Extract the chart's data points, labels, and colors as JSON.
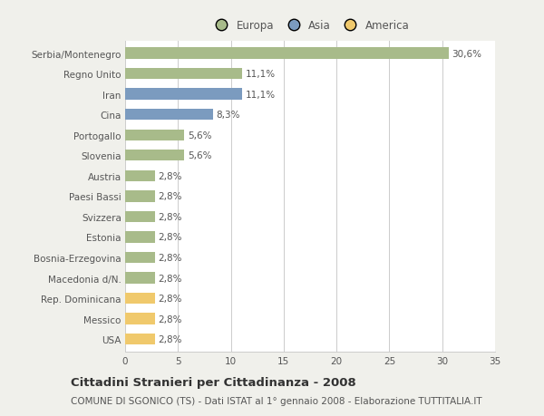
{
  "categories": [
    "Serbia/Montenegro",
    "Regno Unito",
    "Iran",
    "Cina",
    "Portogallo",
    "Slovenia",
    "Austria",
    "Paesi Bassi",
    "Svizzera",
    "Estonia",
    "Bosnia-Erzegovina",
    "Macedonia d/N.",
    "Rep. Dominicana",
    "Messico",
    "USA"
  ],
  "values": [
    30.6,
    11.1,
    11.1,
    8.3,
    5.6,
    5.6,
    2.8,
    2.8,
    2.8,
    2.8,
    2.8,
    2.8,
    2.8,
    2.8,
    2.8
  ],
  "labels": [
    "30,6%",
    "11,1%",
    "11,1%",
    "8,3%",
    "5,6%",
    "5,6%",
    "2,8%",
    "2,8%",
    "2,8%",
    "2,8%",
    "2,8%",
    "2,8%",
    "2,8%",
    "2,8%",
    "2,8%"
  ],
  "colors": [
    "#a8bb8a",
    "#a8bb8a",
    "#7b9bbf",
    "#7b9bbf",
    "#a8bb8a",
    "#a8bb8a",
    "#a8bb8a",
    "#a8bb8a",
    "#a8bb8a",
    "#a8bb8a",
    "#a8bb8a",
    "#a8bb8a",
    "#f0c96c",
    "#f0c96c",
    "#f0c96c"
  ],
  "legend_labels": [
    "Europa",
    "Asia",
    "America"
  ],
  "legend_colors": [
    "#a8bb8a",
    "#7b9bbf",
    "#f0c96c"
  ],
  "xlim": [
    0,
    35
  ],
  "xticks": [
    0,
    5,
    10,
    15,
    20,
    25,
    30,
    35
  ],
  "title": "Cittadini Stranieri per Cittadinanza - 2008",
  "subtitle": "COMUNE DI SGONICO (TS) - Dati ISTAT al 1° gennaio 2008 - Elaborazione TUTTITALIA.IT",
  "bg_color": "#f0f0eb",
  "bar_bg_color": "#ffffff",
  "grid_color": "#cccccc",
  "text_color": "#555555",
  "title_fontsize": 9.5,
  "subtitle_fontsize": 7.5,
  "label_fontsize": 7.5,
  "tick_fontsize": 7.5,
  "legend_fontsize": 8.5
}
